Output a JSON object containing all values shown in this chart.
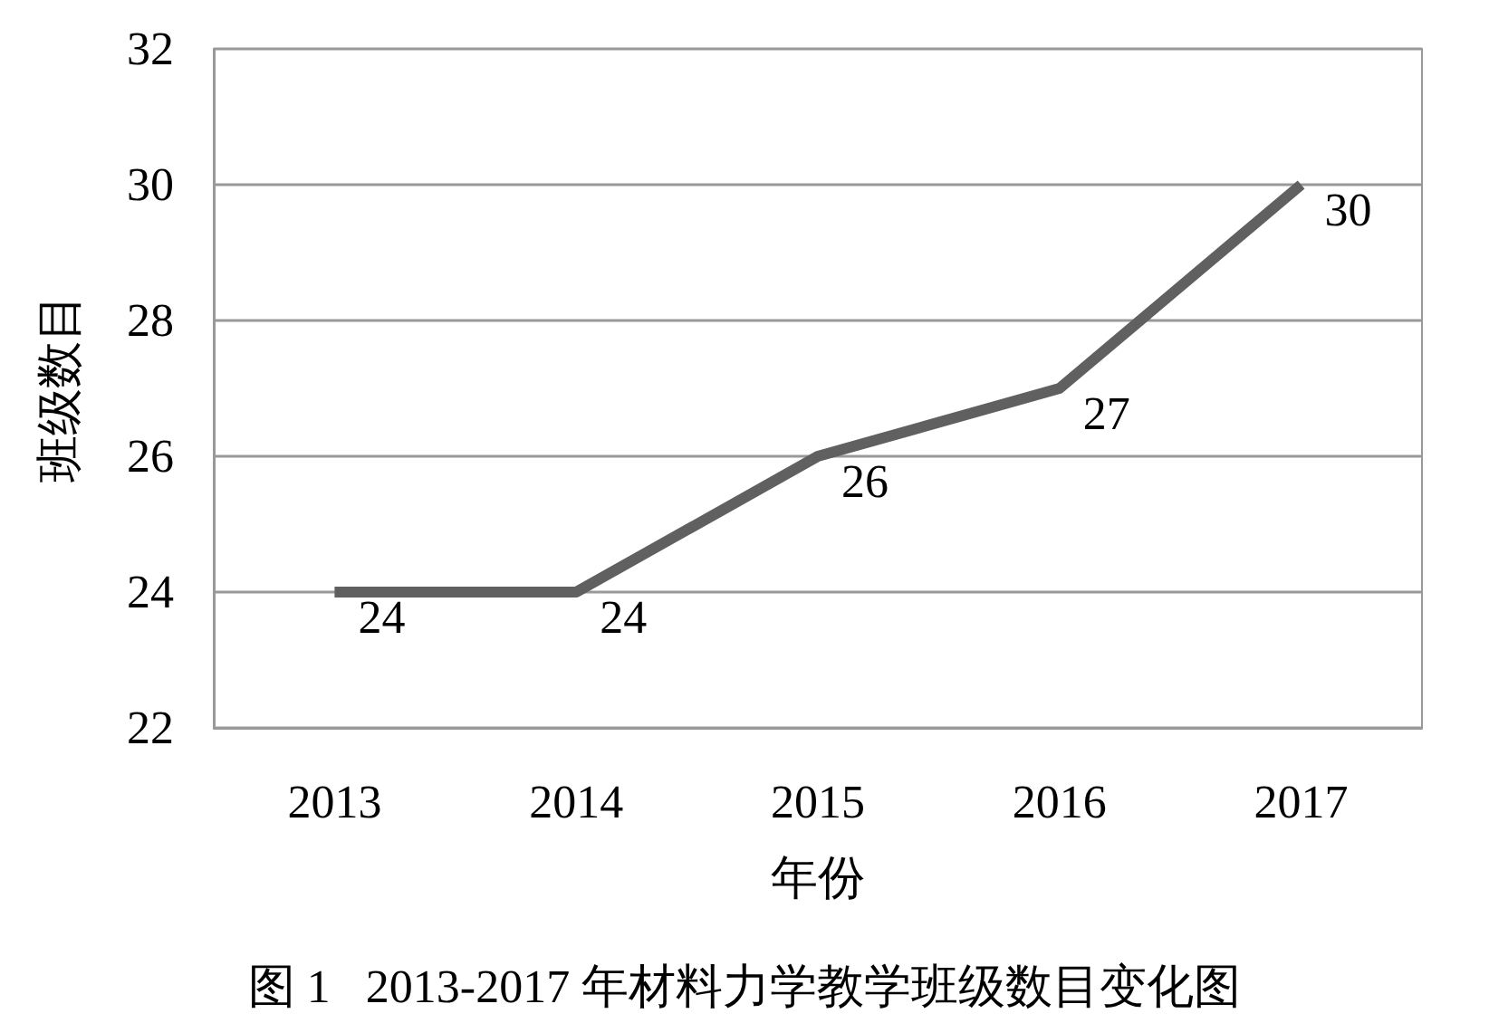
{
  "chart_data": {
    "type": "line",
    "title": "图 1   2013-2017 年材料力学教学班级数目变化图",
    "xlabel": "年份",
    "ylabel": "班级数目",
    "categories": [
      "2013",
      "2014",
      "2015",
      "2016",
      "2017"
    ],
    "series": [
      {
        "color": "#606060",
        "values": [
          24,
          24,
          26,
          27,
          30
        ]
      }
    ],
    "ylim": [
      22,
      32
    ],
    "yticks": [
      22,
      24,
      26,
      28,
      30,
      32
    ],
    "grid": "y",
    "data_labels": true,
    "marker": "none",
    "line_style": "solid"
  }
}
